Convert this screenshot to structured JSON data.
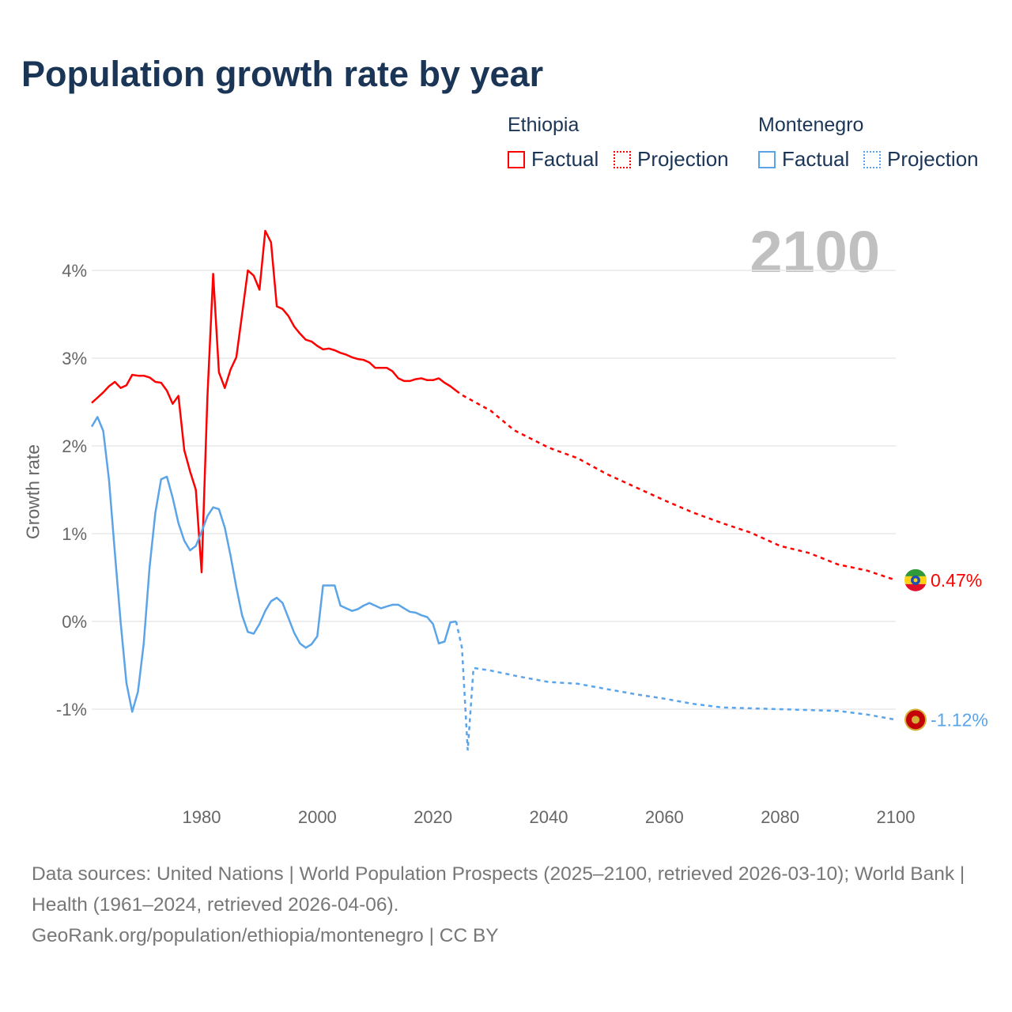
{
  "title": "Population growth rate by year",
  "legend": {
    "groups": [
      {
        "country": "Ethiopia",
        "factual": "Factual",
        "projection": "Projection",
        "color": "#ff0000"
      },
      {
        "country": "Montenegro",
        "factual": "Factual",
        "projection": "Projection",
        "color": "#5ba4e8"
      }
    ]
  },
  "year_label": "2100",
  "footer": {
    "sources": "Data sources: United Nations | World Population Prospects (2025–2100, retrieved 2026-03-10); World Bank | Health (1961–2024, retrieved 2026-04-06).",
    "credit": "GeoRank.org/population/ethiopia/montenegro | CC BY"
  },
  "chart_data": {
    "type": "line",
    "title": "Population growth rate by year",
    "xlabel": "",
    "ylabel": "Growth rate",
    "xlim": [
      1961,
      2100
    ],
    "ylim": [
      -1.9,
      4.9
    ],
    "x_ticks": [
      1980,
      2000,
      2020,
      2040,
      2060,
      2080,
      2100
    ],
    "x_tick_labels": [
      "1980",
      "2000",
      "2020",
      "2040",
      "2060",
      "2080",
      "2100"
    ],
    "y_ticks": [
      -1,
      0,
      1,
      2,
      3,
      4
    ],
    "y_tick_labels": [
      "-1%",
      "0%",
      "1%",
      "2%",
      "3%",
      "4%"
    ],
    "grid": true,
    "legend_position": "top-right",
    "series": [
      {
        "name": "Ethiopia",
        "color": "#ff0000",
        "end_label": "0.47%",
        "factual": {
          "x": [
            1961,
            1962,
            1963,
            1964,
            1965,
            1966,
            1967,
            1968,
            1969,
            1970,
            1971,
            1972,
            1973,
            1974,
            1975,
            1976,
            1977,
            1978,
            1979,
            1980,
            1981,
            1982,
            1983,
            1984,
            1985,
            1986,
            1987,
            1988,
            1989,
            1990,
            1991,
            1992,
            1993,
            1994,
            1995,
            1996,
            1997,
            1998,
            1999,
            2000,
            2001,
            2002,
            2003,
            2004,
            2005,
            2006,
            2007,
            2008,
            2009,
            2010,
            2011,
            2012,
            2013,
            2014,
            2015,
            2016,
            2017,
            2018,
            2019,
            2020,
            2021,
            2022,
            2023,
            2024
          ],
          "y": [
            2.49,
            2.55,
            2.61,
            2.68,
            2.73,
            2.66,
            2.69,
            2.81,
            2.8,
            2.8,
            2.78,
            2.73,
            2.72,
            2.63,
            2.48,
            2.57,
            1.95,
            1.71,
            1.5,
            0.56,
            2.55,
            3.96,
            2.84,
            2.66,
            2.87,
            3.01,
            3.5,
            4.0,
            3.94,
            3.78,
            4.45,
            4.32,
            3.59,
            3.56,
            3.48,
            3.36,
            3.28,
            3.21,
            3.19,
            3.14,
            3.1,
            3.11,
            3.09,
            3.06,
            3.04,
            3.01,
            2.99,
            2.98,
            2.95,
            2.89,
            2.89,
            2.89,
            2.85,
            2.77,
            2.74,
            2.74,
            2.76,
            2.77,
            2.75,
            2.75,
            2.77,
            2.72,
            2.68,
            2.63
          ]
        },
        "projection": {
          "x": [
            2024,
            2025,
            2030,
            2034,
            2040,
            2045,
            2050,
            2055,
            2060,
            2065,
            2070,
            2075,
            2080,
            2085,
            2090,
            2095,
            2100
          ],
          "y": [
            2.63,
            2.58,
            2.4,
            2.18,
            1.98,
            1.86,
            1.68,
            1.53,
            1.38,
            1.24,
            1.12,
            1.01,
            0.86,
            0.78,
            0.65,
            0.58,
            0.47
          ]
        }
      },
      {
        "name": "Montenegro",
        "color": "#5ba4e8",
        "end_label": "-1.12%",
        "factual": {
          "x": [
            1961,
            1962,
            1963,
            1964,
            1965,
            1966,
            1967,
            1968,
            1969,
            1970,
            1971,
            1972,
            1973,
            1974,
            1975,
            1976,
            1977,
            1978,
            1979,
            1980,
            1981,
            1982,
            1983,
            1984,
            1985,
            1986,
            1987,
            1988,
            1989,
            1990,
            1991,
            1992,
            1993,
            1994,
            1995,
            1996,
            1997,
            1998,
            1999,
            2000,
            2001,
            2002,
            2003,
            2004,
            2005,
            2006,
            2007,
            2008,
            2009,
            2010,
            2011,
            2012,
            2013,
            2014,
            2015,
            2016,
            2017,
            2018,
            2019,
            2020,
            2021,
            2022,
            2023,
            2024
          ],
          "y": [
            2.22,
            2.33,
            2.17,
            1.61,
            0.78,
            -0.01,
            -0.7,
            -1.03,
            -0.8,
            -0.25,
            0.62,
            1.24,
            1.62,
            1.65,
            1.41,
            1.12,
            0.92,
            0.81,
            0.86,
            1.02,
            1.2,
            1.3,
            1.28,
            1.07,
            0.75,
            0.39,
            0.07,
            -0.12,
            -0.14,
            -0.03,
            0.12,
            0.23,
            0.27,
            0.21,
            0.04,
            -0.13,
            -0.25,
            -0.3,
            -0.26,
            -0.17,
            0.41,
            0.41,
            0.41,
            0.18,
            0.15,
            0.12,
            0.14,
            0.18,
            0.21,
            0.18,
            0.15,
            0.17,
            0.19,
            0.19,
            0.15,
            0.11,
            0.1,
            0.07,
            0.05,
            -0.03,
            -0.25,
            -0.23,
            -0.01,
            0.0
          ]
        },
        "projection": {
          "x": [
            2024,
            2025,
            2026,
            2027,
            2030,
            2035,
            2040,
            2045,
            2050,
            2055,
            2060,
            2065,
            2070,
            2075,
            2080,
            2085,
            2090,
            2095,
            2100
          ],
          "y": [
            0.0,
            -0.3,
            -1.47,
            -0.53,
            -0.56,
            -0.63,
            -0.69,
            -0.71,
            -0.77,
            -0.83,
            -0.88,
            -0.94,
            -0.98,
            -0.99,
            -1.0,
            -1.01,
            -1.02,
            -1.06,
            -1.12
          ]
        }
      }
    ]
  }
}
